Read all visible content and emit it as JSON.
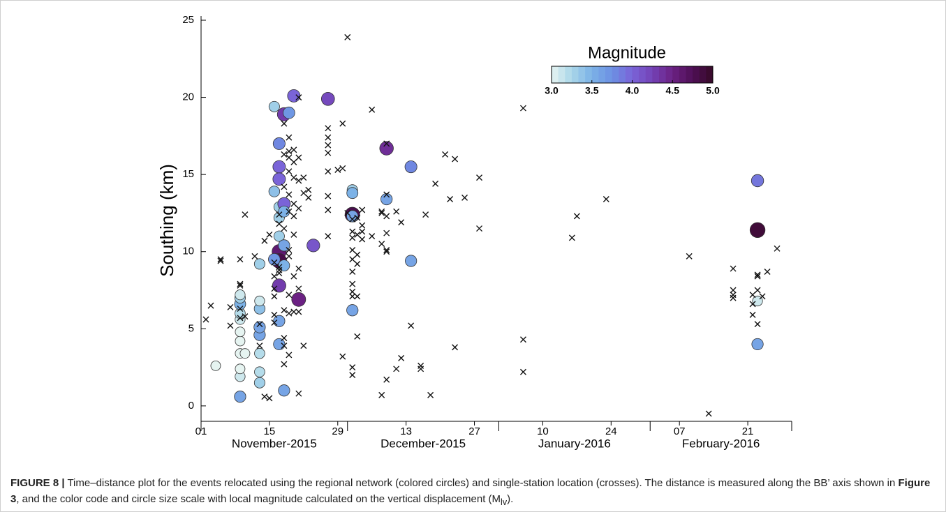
{
  "chart_data": {
    "type": "scatter",
    "y_label": "Southing (km)",
    "xlim": [
      "2015-11-01",
      "2016-03-01"
    ],
    "xticks": [
      {
        "value": "2015-11-01",
        "label": "01"
      },
      {
        "value": "2015-11-15",
        "label": "15"
      },
      {
        "value": "2015-11-29",
        "label": "29"
      },
      {
        "value": "2015-12-13",
        "label": "13"
      },
      {
        "value": "2015-12-27",
        "label": "27"
      },
      {
        "value": "2016-01-10",
        "label": "10"
      },
      {
        "value": "2016-01-24",
        "label": "24"
      },
      {
        "value": "2016-02-07",
        "label": "07"
      },
      {
        "value": "2016-02-21",
        "label": "21"
      }
    ],
    "months": [
      "November-2015",
      "December-2015",
      "January-2016",
      "February-2016"
    ],
    "month_bounds": [
      "2015-11-01",
      "2015-12-01",
      "2016-01-01",
      "2016-02-01",
      "2016-03-01"
    ],
    "ylim": [
      -1,
      25
    ],
    "yticks": [
      0,
      5,
      10,
      15,
      20,
      25
    ],
    "colorbar": {
      "title": "Magnitude",
      "clim": [
        3,
        5
      ],
      "ticks": [
        {
          "value": 3,
          "label": "3.0"
        },
        {
          "value": 3.5,
          "label": "3.5"
        },
        {
          "value": 4,
          "label": "4.0"
        },
        {
          "value": 4.5,
          "label": "4.5"
        },
        {
          "value": 5,
          "label": "5.0"
        }
      ],
      "colormap": [
        "#e6f4f1",
        "#a9d6e8",
        "#7cb2e7",
        "#6c90e3",
        "#7a64d8",
        "#7442b6",
        "#6b2183",
        "#4e0f55",
        "#360a26"
      ]
    },
    "series": [
      {
        "marker": "circle",
        "x": [
          "2015-11-04",
          "2015-11-09",
          "2015-11-09",
          "2015-11-09",
          "2015-11-09",
          "2015-11-10",
          "2015-11-09",
          "2015-11-09",
          "2015-11-09",
          "2015-11-09",
          "2015-11-09",
          "2015-11-09",
          "2015-11-09",
          "2015-11-13",
          "2015-11-13",
          "2015-11-13",
          "2015-11-13",
          "2015-11-13",
          "2015-11-13",
          "2015-11-13",
          "2015-11-13",
          "2015-11-16",
          "2015-11-17",
          "2015-11-17",
          "2015-11-17",
          "2015-11-16",
          "2015-11-17",
          "2015-11-17",
          "2015-11-18",
          "2015-11-18",
          "2015-11-17",
          "2015-11-17",
          "2015-11-17",
          "2015-11-16",
          "2015-11-18",
          "2015-11-18",
          "2015-11-17",
          "2015-11-21",
          "2015-11-17",
          "2015-11-17",
          "2015-11-18",
          "2015-11-18",
          "2015-11-19",
          "2015-11-20",
          "2015-11-24",
          "2015-11-27",
          "2015-12-02",
          "2015-12-02",
          "2015-12-02",
          "2015-12-02",
          "2015-12-02",
          "2015-12-09",
          "2015-12-09",
          "2015-12-14",
          "2015-12-14",
          "2016-02-23",
          "2016-02-23",
          "2016-02-23",
          "2016-02-23"
        ],
        "y": [
          2.6,
          0.6,
          1.9,
          2.4,
          3.4,
          3.4,
          4.2,
          4.8,
          5.6,
          6.0,
          6.6,
          7.0,
          7.2,
          1.5,
          2.2,
          3.4,
          4.6,
          5.1,
          6.3,
          6.8,
          9.2,
          19.4,
          17.0,
          15.5,
          14.7,
          13.9,
          12.9,
          12.2,
          13.1,
          12.6,
          11.0,
          10.0,
          9.4,
          9.5,
          9.1,
          10.4,
          7.8,
          6.9,
          5.5,
          4.0,
          1.0,
          18.9,
          19.0,
          20.1,
          10.4,
          19.9,
          12.4,
          12.3,
          14.0,
          13.8,
          6.2,
          16.7,
          13.4,
          15.5,
          9.4,
          14.6,
          11.4,
          6.8,
          4.0
        ],
        "magnitude": [
          3.0,
          3.6,
          3.1,
          3.0,
          3.0,
          3.0,
          3.0,
          3.0,
          3.1,
          3.2,
          3.5,
          3.3,
          3.1,
          3.3,
          3.2,
          3.2,
          3.6,
          3.6,
          3.4,
          3.1,
          3.3,
          3.3,
          3.8,
          4.0,
          4.0,
          3.4,
          3.3,
          3.3,
          4.0,
          3.5,
          3.3,
          4.6,
          4.8,
          3.7,
          3.5,
          3.6,
          4.3,
          4.5,
          3.6,
          3.6,
          3.6,
          4.3,
          3.7,
          4.0,
          4.1,
          4.2,
          4.8,
          3.6,
          3.3,
          3.5,
          3.6,
          4.4,
          3.6,
          3.8,
          3.6,
          3.9,
          4.9,
          3.1,
          3.6
        ]
      },
      {
        "marker": "cross",
        "x": [
          "2015-11-02",
          "2015-11-03",
          "2015-11-05",
          "2015-11-05",
          "2015-11-07",
          "2015-11-07",
          "2015-11-09",
          "2015-11-09",
          "2015-11-09",
          "2015-11-09",
          "2015-11-09",
          "2015-11-10",
          "2015-11-10",
          "2015-11-12",
          "2015-11-13",
          "2015-11-13",
          "2015-11-14",
          "2015-11-14",
          "2015-11-15",
          "2015-11-15",
          "2015-11-16",
          "2015-11-16",
          "2015-11-16",
          "2015-11-16",
          "2015-11-16",
          "2015-11-16",
          "2015-11-17",
          "2015-11-17",
          "2015-11-17",
          "2015-11-17",
          "2015-11-17",
          "2015-11-18",
          "2015-11-18",
          "2015-11-18",
          "2015-11-18",
          "2015-11-18",
          "2015-11-18",
          "2015-11-18",
          "2015-11-18",
          "2015-11-19",
          "2015-11-19",
          "2015-11-19",
          "2015-11-19",
          "2015-11-19",
          "2015-11-19",
          "2015-11-19",
          "2015-11-19",
          "2015-11-19",
          "2015-11-19",
          "2015-11-19",
          "2015-11-20",
          "2015-11-20",
          "2015-11-20",
          "2015-11-20",
          "2015-11-20",
          "2015-11-20",
          "2015-11-20",
          "2015-11-20",
          "2015-11-21",
          "2015-11-21",
          "2015-11-21",
          "2015-11-21",
          "2015-11-21",
          "2015-11-21",
          "2015-11-21",
          "2015-11-21",
          "2015-11-22",
          "2015-11-22",
          "2015-11-22",
          "2015-11-23",
          "2015-11-23",
          "2015-11-27",
          "2015-11-27",
          "2015-11-27",
          "2015-11-27",
          "2015-11-27",
          "2015-11-27",
          "2015-11-27",
          "2015-11-27",
          "2015-11-30",
          "2015-11-30",
          "2015-11-30",
          "2015-11-29",
          "2015-12-01",
          "2015-12-01",
          "2015-12-02",
          "2015-12-02",
          "2015-12-02",
          "2015-12-02",
          "2015-12-02",
          "2015-12-02",
          "2015-12-02",
          "2015-12-02",
          "2015-12-02",
          "2015-12-02",
          "2015-12-02",
          "2015-12-03",
          "2015-12-03",
          "2015-12-03",
          "2015-12-03",
          "2015-12-03",
          "2015-12-03",
          "2015-12-04",
          "2015-12-04",
          "2015-12-04",
          "2015-12-04",
          "2015-12-06",
          "2015-12-06",
          "2015-12-08",
          "2015-12-08",
          "2015-12-08",
          "2015-12-08",
          "2015-12-09",
          "2015-12-09",
          "2015-12-09",
          "2015-12-09",
          "2015-12-09",
          "2015-12-09",
          "2015-12-09",
          "2015-12-11",
          "2015-12-11",
          "2015-12-12",
          "2015-12-12",
          "2015-12-14",
          "2015-12-16",
          "2015-12-16",
          "2015-12-17",
          "2015-12-18",
          "2015-12-19",
          "2015-12-21",
          "2015-12-22",
          "2015-12-23",
          "2015-12-23",
          "2015-12-25",
          "2015-12-28",
          "2015-12-28",
          "2016-01-06",
          "2016-01-06",
          "2016-01-06",
          "2016-01-16",
          "2016-01-17",
          "2016-01-23",
          "2016-02-09",
          "2016-02-13",
          "2016-02-18",
          "2016-02-18",
          "2016-02-18",
          "2016-02-18",
          "2016-02-22",
          "2016-02-22",
          "2016-02-22",
          "2016-02-23",
          "2016-02-23",
          "2016-02-23",
          "2016-02-23",
          "2016-02-24",
          "2016-02-25",
          "2016-02-27"
        ],
        "y": [
          5.6,
          6.5,
          9.5,
          9.4,
          5.2,
          6.4,
          9.5,
          7.8,
          7.9,
          6.3,
          5.7,
          12.4,
          5.8,
          9.7,
          3.9,
          5.3,
          10.7,
          0.6,
          0.5,
          11.1,
          9.3,
          8.4,
          7.6,
          5.9,
          5.4,
          7.1,
          8.6,
          8.8,
          9.0,
          11.8,
          12.4,
          18.3,
          16.3,
          14.2,
          11.5,
          6.2,
          4.4,
          3.9,
          2.7,
          17.4,
          16.5,
          16.1,
          15.2,
          13.7,
          12.6,
          10.1,
          9.7,
          7.2,
          6.0,
          3.3,
          16.6,
          15.8,
          14.8,
          13.1,
          12.3,
          11.1,
          8.4,
          6.1,
          16.1,
          14.6,
          12.8,
          8.9,
          7.6,
          6.1,
          0.8,
          20.0,
          14.8,
          13.8,
          3.9,
          14.0,
          13.5,
          18.0,
          17.4,
          16.9,
          16.4,
          15.2,
          13.6,
          12.7,
          11.0,
          15.4,
          18.3,
          3.2,
          15.3,
          23.9,
          12.5,
          12.1,
          11.3,
          10.9,
          10.1,
          9.5,
          8.7,
          7.9,
          7.4,
          7.1,
          2.5,
          2.0,
          12.2,
          11.1,
          9.8,
          9.2,
          7.1,
          4.5,
          11.7,
          11.3,
          10.8,
          12.7,
          11.0,
          19.2,
          12.6,
          12.5,
          10.5,
          0.7,
          13.7,
          12.3,
          11.2,
          10.1,
          10.0,
          1.7,
          17.0,
          12.6,
          2.4,
          11.9,
          3.1,
          5.2,
          2.6,
          2.4,
          12.4,
          0.7,
          14.4,
          16.3,
          13.4,
          3.8,
          16.0,
          13.5,
          14.8,
          11.5,
          19.3,
          4.3,
          2.2,
          10.9,
          12.3,
          13.4,
          9.7,
          -0.5,
          8.9,
          7.5,
          7.2,
          7.0,
          7.2,
          6.6,
          5.9,
          8.5,
          8.4,
          7.5,
          5.3,
          7.1,
          8.7,
          10.2
        ]
      }
    ]
  },
  "caption": {
    "label": "FIGURE 8 |",
    "text1": "Time–distance plot for the events relocated using the regional network (colored circles) and single-station location (crosses). The distance is measured along the BB’ axis shown in",
    "ref": "Figure 3",
    "text2": ", and the color code and circle size scale with local magnitude calculated on the vertical displacement (M",
    "sub": "lv",
    "text3": ")."
  }
}
